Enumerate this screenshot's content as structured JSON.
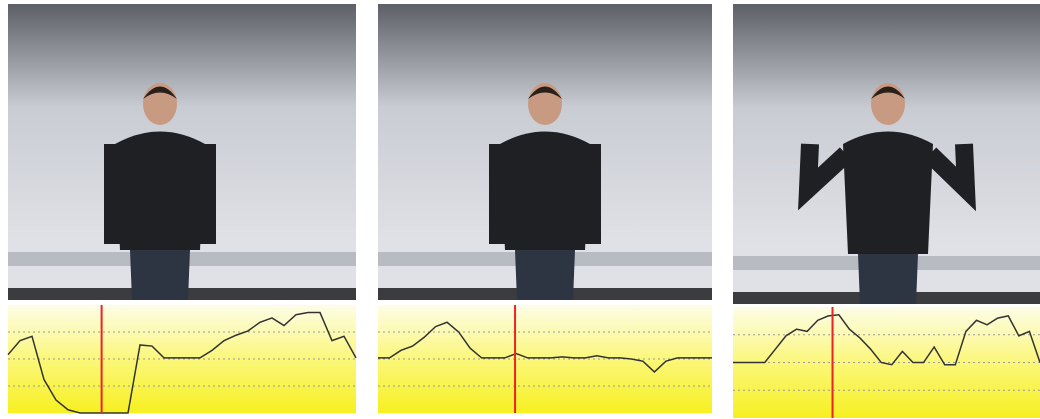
{
  "chart_data": [
    {
      "type": "line",
      "color": "#333333",
      "marker_color": "#ee2222",
      "marker_x": 7.8,
      "values": [
        54,
        67,
        71,
        31,
        12,
        3,
        0,
        0,
        0,
        0,
        0,
        63,
        62,
        51,
        51,
        51,
        51,
        58,
        67,
        72,
        76,
        84,
        88,
        81,
        91,
        93,
        93,
        67,
        71,
        51
      ]
    },
    {
      "type": "line",
      "color": "#333333",
      "marker_color": "#ee2222",
      "marker_x": 11.9,
      "values": [
        51,
        51,
        58,
        62,
        70,
        80,
        84,
        75,
        60,
        51,
        51,
        51,
        55,
        51,
        51,
        51,
        52,
        51,
        51,
        53,
        51,
        51,
        50,
        48,
        38,
        48,
        51,
        51,
        51,
        51
      ]
    },
    {
      "type": "line",
      "color": "#333333",
      "marker_color": "#ee2222",
      "marker_x": 9.4,
      "values": [
        50,
        50,
        50,
        50,
        62,
        74,
        80,
        78,
        88,
        92,
        93,
        80,
        72,
        62,
        50,
        48,
        60,
        50,
        50,
        64,
        48,
        48,
        78,
        88,
        84,
        90,
        92,
        74,
        78,
        50
      ]
    }
  ]
}
